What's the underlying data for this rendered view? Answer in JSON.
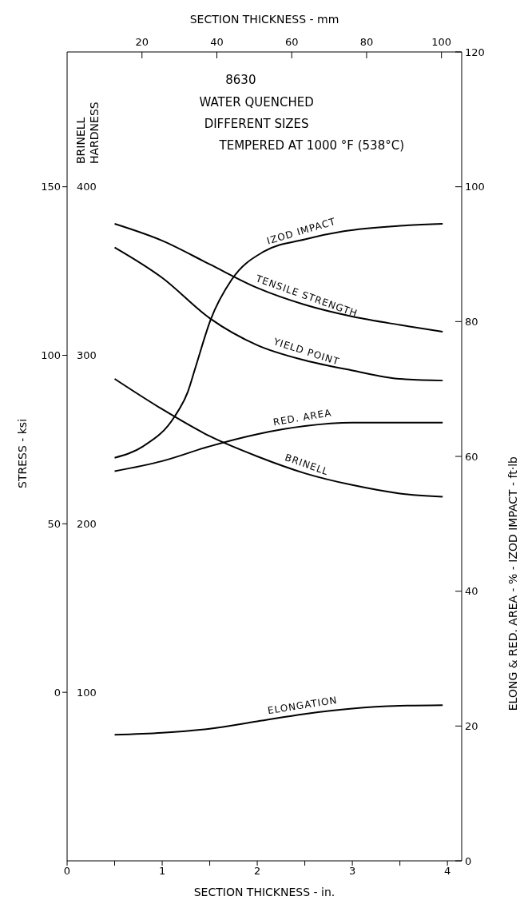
{
  "chart_data": {
    "type": "line",
    "title": "8630",
    "annotations": [
      "WATER QUENCHED",
      "DIFFERENT SIZES",
      "TEMPERED AT 1000 °F (538°C)"
    ],
    "xlabel": "SECTION THICKNESS - in.",
    "x2label": "SECTION THICKNESS - mm",
    "ylabel": "STRESS - ksi",
    "y3label": "BRINELL HARDNESS",
    "y2label": "ELONG & RED. AREA - % - IZOD IMPACT - ft·lb",
    "xlim": [
      0,
      4.15
    ],
    "xticks": [
      0,
      {
        "value": 0.5,
        "label": null
      },
      1,
      {
        "value": 1.5,
        "label": null
      },
      2,
      {
        "value": 2.5,
        "label": null
      },
      3,
      {
        "value": 3.5,
        "label": null
      },
      4
    ],
    "x2lim": [
      0,
      105.4
    ],
    "x2ticks": [
      20,
      40,
      60,
      80,
      100
    ],
    "ylim": [
      -50,
      190
    ],
    "yticks": [
      0,
      50,
      100,
      150
    ],
    "y2lim": [
      0,
      120
    ],
    "y2ticks": [
      0,
      20,
      40,
      60,
      80,
      100,
      120
    ],
    "y3lim": [
      0,
      480
    ],
    "y3ticks": [
      100,
      200,
      300,
      400
    ],
    "marker": "none",
    "line_style": "solid",
    "series": [
      {
        "name": "IZOD IMPACT",
        "color": "#000000",
        "axis": "y2",
        "x": [
          0.5,
          0.8,
          1.13,
          1.27,
          1.35,
          1.51,
          1.73,
          2.07,
          2.5,
          2.91,
          3.5,
          3.95
        ],
        "values": [
          59.8,
          61.5,
          65.9,
          69.6,
          73.2,
          80.3,
          86.2,
          90.4,
          92.2,
          93.4,
          94.2,
          94.5
        ]
      },
      {
        "name": "TENSILE STRENGTH",
        "color": "#000000",
        "axis": "y",
        "x": [
          0.5,
          1.0,
          1.5,
          2.0,
          2.5,
          3.0,
          3.5,
          3.95
        ],
        "values": [
          139,
          134,
          127,
          120,
          115,
          111.5,
          109,
          107
        ]
      },
      {
        "name": "YIELD POINT",
        "color": "#000000",
        "axis": "y",
        "x": [
          0.5,
          1.0,
          1.5,
          2.0,
          2.5,
          3.0,
          3.5,
          3.95
        ],
        "values": [
          132,
          123,
          111,
          103,
          98.5,
          95.5,
          93,
          92.5
        ]
      },
      {
        "name": "RED. AREA",
        "color": "#000000",
        "axis": "y2",
        "x": [
          0.5,
          1.0,
          1.5,
          2.0,
          2.5,
          3.0,
          3.95
        ],
        "values": [
          57.8,
          59.3,
          61.5,
          63.3,
          64.5,
          65,
          65
        ]
      },
      {
        "name": "BRINELL",
        "color": "#000000",
        "axis": "y3",
        "x": [
          0.5,
          1.0,
          1.5,
          2.0,
          2.5,
          3.0,
          3.5,
          3.95
        ],
        "values": [
          286,
          268,
          252,
          240,
          230,
          223,
          218,
          216
        ]
      },
      {
        "name": "ELONGATION",
        "color": "#000000",
        "axis": "y2",
        "x": [
          0.5,
          1.0,
          1.5,
          2.0,
          2.5,
          3.0,
          3.5,
          3.95
        ],
        "values": [
          18.7,
          19.0,
          19.6,
          20.7,
          21.8,
          22.6,
          23.0,
          23.1
        ]
      }
    ]
  }
}
